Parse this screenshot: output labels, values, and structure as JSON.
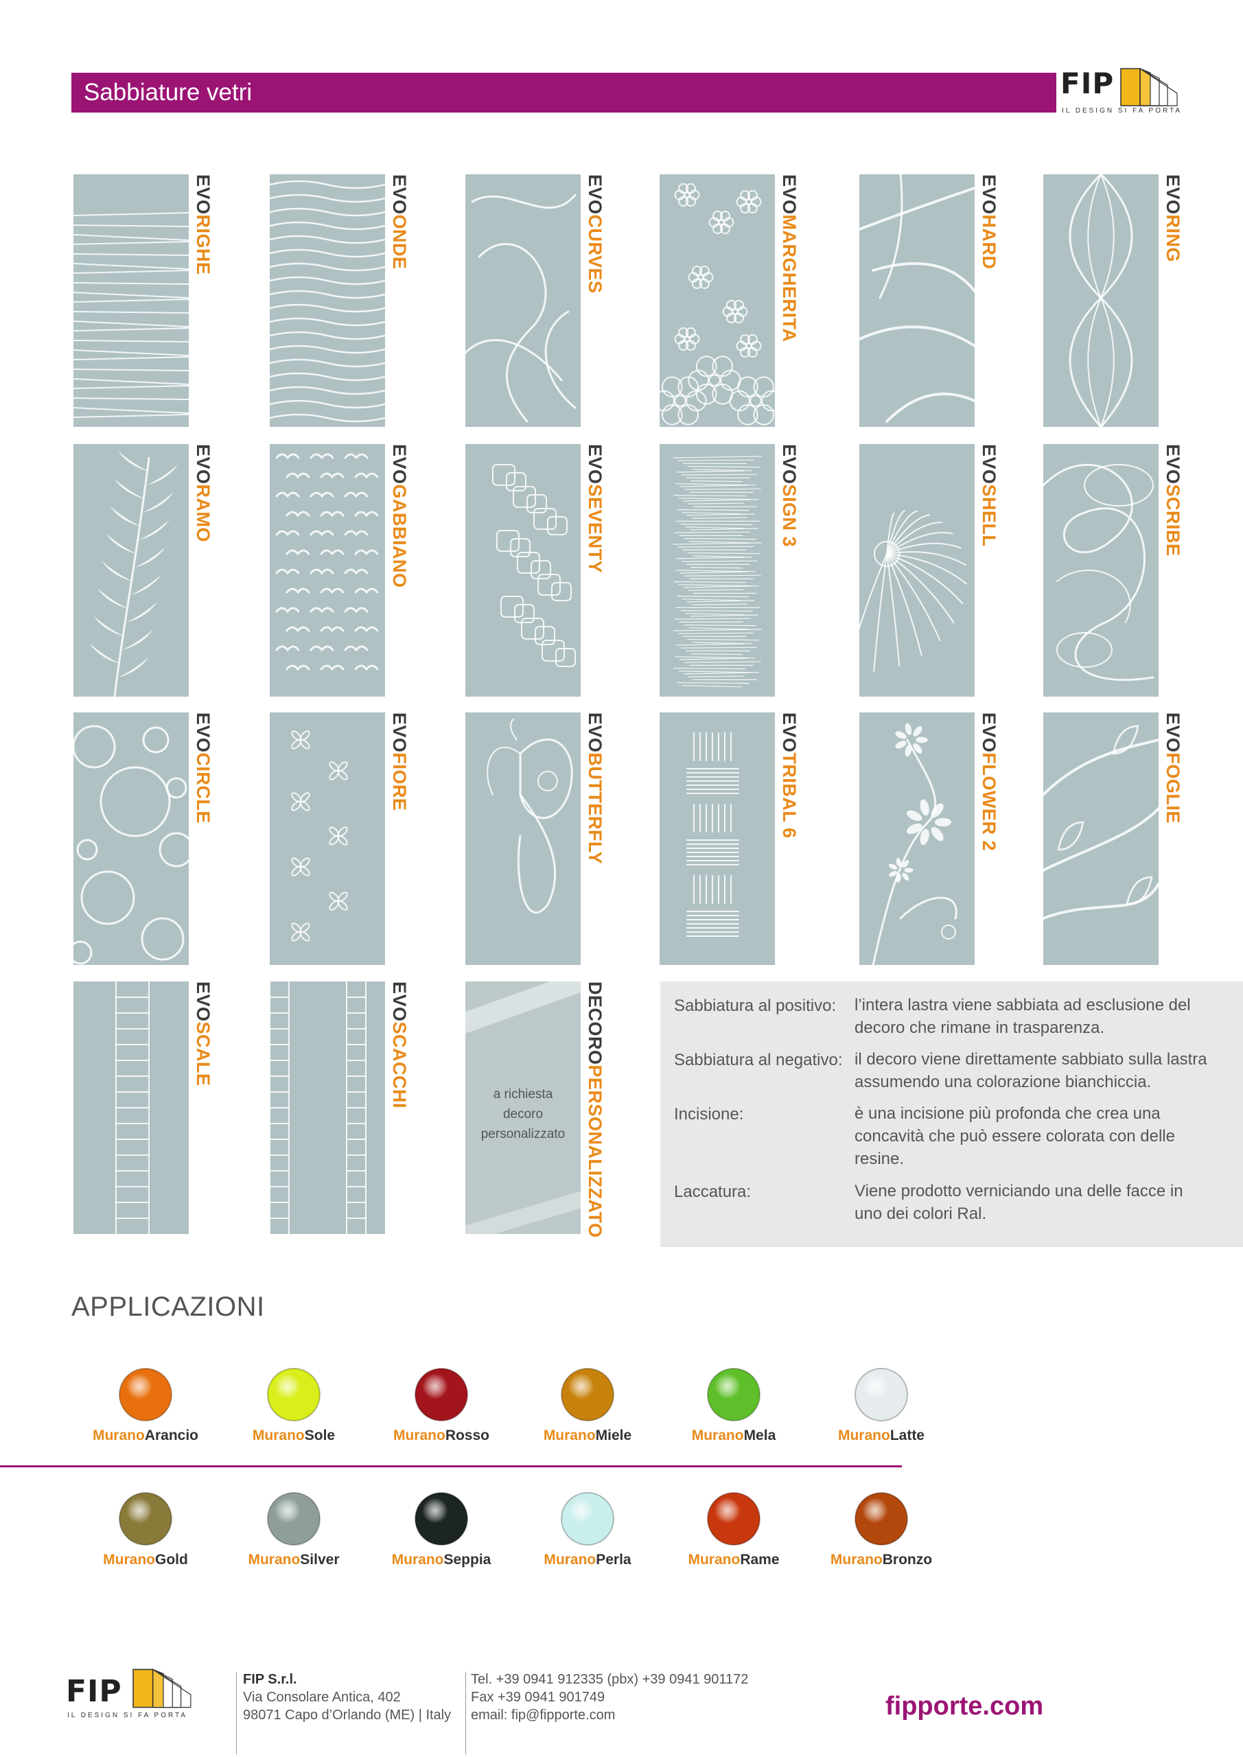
{
  "header": {
    "title": "Sabbiature vetri"
  },
  "logo": {
    "word": "FIP",
    "tagline": "IL DESIGN SI FA PORTA"
  },
  "colors": {
    "magenta": "#9b1474",
    "orange": "#e98a1a",
    "glass": "#a9bcbe"
  },
  "swatches": [
    {
      "prefix": "EVO",
      "name": "RIGHE",
      "pattern": "lines"
    },
    {
      "prefix": "EVO",
      "name": "ONDE",
      "pattern": "waves"
    },
    {
      "prefix": "EVO",
      "name": "CURVES",
      "pattern": "curves"
    },
    {
      "prefix": "EVO",
      "name": "MARGHERITA",
      "pattern": "flowers"
    },
    {
      "prefix": "EVO",
      "name": "HARD",
      "pattern": "hard"
    },
    {
      "prefix": "EVO",
      "name": "RING",
      "pattern": "ring"
    },
    {
      "prefix": "EVO",
      "name": "RAMO",
      "pattern": "branch"
    },
    {
      "prefix": "EVO",
      "name": "GABBIANO",
      "pattern": "gulls"
    },
    {
      "prefix": "EVO",
      "name": "SEVENTY",
      "pattern": "squares"
    },
    {
      "prefix": "EVO",
      "name": "SIGN 3",
      "pattern": "sign"
    },
    {
      "prefix": "EVO",
      "name": "SHELL",
      "pattern": "shell"
    },
    {
      "prefix": "EVO",
      "name": "SCRIBE",
      "pattern": "scribe"
    },
    {
      "prefix": "EVO",
      "name": "CIRCLE",
      "pattern": "circles"
    },
    {
      "prefix": "EVO",
      "name": "FIORE",
      "pattern": "fiore"
    },
    {
      "prefix": "EVO",
      "name": "BUTTERFLY",
      "pattern": "butterfly"
    },
    {
      "prefix": "EVO",
      "name": "TRIBAL 6",
      "pattern": "tribal"
    },
    {
      "prefix": "EVO",
      "name": "FLOWER 2",
      "pattern": "flower2"
    },
    {
      "prefix": "EVO",
      "name": "FOGLIE",
      "pattern": "leaves"
    },
    {
      "prefix": "EVO",
      "name": "SCALE",
      "pattern": "ladder"
    },
    {
      "prefix": "EVO",
      "name": "SCACCHI",
      "pattern": "chess"
    },
    {
      "prefix": "DECORO",
      "name": "PERSONALIZZATO",
      "pattern": "custom",
      "note": [
        "a richiesta",
        "decoro",
        "personalizzato"
      ]
    }
  ],
  "info": [
    {
      "term": "Sabbiatura al positivo:",
      "def": "l’intera lastra viene sabbiata ad esclusione del decoro che rimane in trasparenza."
    },
    {
      "term": "Sabbiatura al negativo:",
      "def": "il decoro viene direttamente sabbiato sulla lastra assumendo una colorazione bianchiccia."
    },
    {
      "term": "Incisione:",
      "def": "è una incisione più profonda che crea una concavità che può essere colorata con delle resine."
    },
    {
      "term": "Laccatura:",
      "def": "Viene prodotto verniciando una delle facce in uno dei colori Ral."
    }
  ],
  "applications": {
    "title": "APPLICAZIONI",
    "items": [
      {
        "prefix": "Murano",
        "name": "Arancio",
        "color": "#e8700e"
      },
      {
        "prefix": "Murano",
        "name": "Sole",
        "color": "#d9ee1a"
      },
      {
        "prefix": "Murano",
        "name": "Rosso",
        "color": "#a3151c"
      },
      {
        "prefix": "Murano",
        "name": "Miele",
        "color": "#c7820c"
      },
      {
        "prefix": "Murano",
        "name": "Mela",
        "color": "#5fbf2a"
      },
      {
        "prefix": "Murano",
        "name": "Latte",
        "color": "#e6ecee"
      },
      {
        "prefix": "Murano",
        "name": "Gold",
        "color": "#8a7a3a"
      },
      {
        "prefix": "Murano",
        "name": "Silver",
        "color": "#8f9f98"
      },
      {
        "prefix": "Murano",
        "name": "Seppia",
        "color": "#1c2424"
      },
      {
        "prefix": "Murano",
        "name": "Perla",
        "color": "#c9eeec"
      },
      {
        "prefix": "Murano",
        "name": "Rame",
        "color": "#c8380e"
      },
      {
        "prefix": "Murano",
        "name": "Bronzo",
        "color": "#b3480c"
      }
    ]
  },
  "footer": {
    "company": "FIP S.r.l.",
    "address1": "Via Consolare Antica, 402",
    "address2": "98071 Capo d’Orlando (ME) | Italy",
    "tel": "Tel. +39 0941 912335 (pbx) +39 0941 901172",
    "fax": "Fax +39 0941 901749",
    "email": "email: fip@fipporte.com",
    "website": "fipporte.com"
  }
}
